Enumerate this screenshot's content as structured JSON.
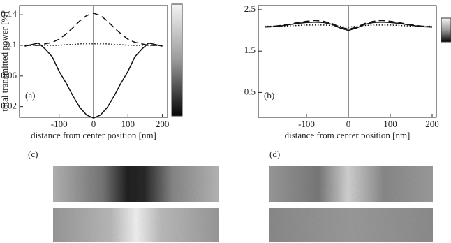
{
  "chart_data": [
    {
      "type": "line",
      "annotation": "(a)",
      "ylabel": "total transmitted power [%]",
      "xlabel": "distance from center position [nm]",
      "x": [
        -200,
        -180,
        -160,
        -140,
        -120,
        -100,
        -80,
        -60,
        -40,
        -20,
        0,
        20,
        40,
        60,
        80,
        100,
        120,
        140,
        160,
        180,
        200
      ],
      "series": [
        {
          "style": "solid",
          "color": "#111",
          "values": [
            0.099,
            0.101,
            0.103,
            0.095,
            0.085,
            0.066,
            0.051,
            0.034,
            0.019,
            0.009,
            0.005,
            0.009,
            0.019,
            0.034,
            0.051,
            0.066,
            0.085,
            0.095,
            0.103,
            0.101,
            0.099
          ]
        },
        {
          "style": "dashed",
          "color": "#111",
          "values": [
            0.1,
            0.1,
            0.1,
            0.102,
            0.104,
            0.108,
            0.115,
            0.123,
            0.132,
            0.139,
            0.142,
            0.139,
            0.132,
            0.123,
            0.115,
            0.108,
            0.104,
            0.102,
            0.1,
            0.1,
            0.1
          ]
        },
        {
          "style": "dotted",
          "color": "#111",
          "values": [
            0.1,
            0.1,
            0.1,
            0.1,
            0.1,
            0.1,
            0.101,
            0.101,
            0.102,
            0.102,
            0.102,
            0.102,
            0.102,
            0.101,
            0.101,
            0.1,
            0.1,
            0.1,
            0.1,
            0.1,
            0.1
          ]
        }
      ],
      "xlim": [
        -215,
        215
      ],
      "ylim": [
        0.006,
        0.152
      ],
      "xticks": [
        -100,
        0,
        100,
        200
      ],
      "yticks": [
        0.02,
        0.06,
        0.1,
        0.14
      ]
    },
    {
      "type": "line",
      "annotation": "(b)",
      "xlabel": "distance from center position [nm]",
      "x": [
        -200,
        -180,
        -160,
        -140,
        -120,
        -100,
        -80,
        -60,
        -40,
        -20,
        0,
        20,
        40,
        60,
        80,
        100,
        120,
        140,
        160,
        180,
        200
      ],
      "series": [
        {
          "style": "solid",
          "color": "#111",
          "values": [
            2.08,
            2.09,
            2.11,
            2.14,
            2.17,
            2.19,
            2.2,
            2.19,
            2.15,
            2.06,
            2.0,
            2.06,
            2.15,
            2.19,
            2.2,
            2.19,
            2.17,
            2.14,
            2.11,
            2.09,
            2.08
          ]
        },
        {
          "style": "dashed",
          "color": "#111",
          "values": [
            2.09,
            2.1,
            2.12,
            2.15,
            2.19,
            2.22,
            2.24,
            2.22,
            2.17,
            2.08,
            2.03,
            2.08,
            2.17,
            2.22,
            2.24,
            2.22,
            2.19,
            2.15,
            2.12,
            2.1,
            2.09
          ]
        },
        {
          "style": "dotted",
          "color": "#111",
          "values": [
            2.1,
            2.1,
            2.1,
            2.11,
            2.12,
            2.13,
            2.13,
            2.13,
            2.12,
            2.1,
            2.08,
            2.1,
            2.12,
            2.13,
            2.13,
            2.13,
            2.12,
            2.11,
            2.1,
            2.1,
            2.1
          ]
        }
      ],
      "xlim": [
        -215,
        210
      ],
      "ylim": [
        -0.1,
        2.6
      ],
      "xticks": [
        -100,
        0,
        100,
        200
      ],
      "yticks": [
        0.5,
        1.5,
        2.5
      ]
    }
  ],
  "image_labels": [
    "(c)",
    "(d)"
  ]
}
